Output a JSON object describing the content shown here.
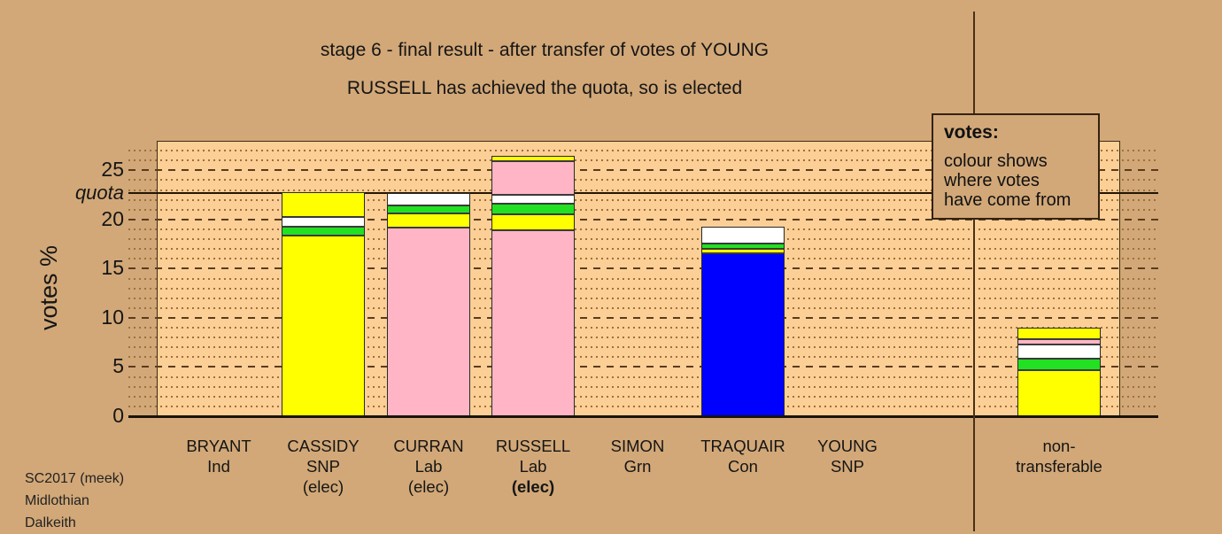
{
  "legend": {
    "title": "votes:",
    "lines": [
      "colour shows",
      "where votes",
      "have come from"
    ]
  },
  "footer": {
    "lines": [
      "SC2017 (meek)",
      "Midlothian",
      "Dalkeith"
    ]
  },
  "chart_data": {
    "type": "bar",
    "stacked": true,
    "title": "stage 6 - final result - after transfer of votes of YOUNG",
    "subtitle": "RUSSELL has achieved the quota, so is elected",
    "ylabel": "votes %",
    "ylim": [
      0,
      28
    ],
    "yticks": [
      0,
      5,
      10,
      15,
      20,
      25
    ],
    "grid": {
      "minor_step_pct": 1,
      "major_step_pct": 5
    },
    "quota": {
      "label": "quota",
      "value": 22.7
    },
    "palette": {
      "yellow": "#ffff00",
      "pink": "#ffb5c5",
      "green": "#22e022",
      "white": "#ffffff",
      "blue": "#0000ff"
    },
    "categories": [
      {
        "name": "BRYANT",
        "party": "Ind",
        "note": "",
        "note_bold": false,
        "total": 0,
        "segments": []
      },
      {
        "name": "CASSIDY",
        "party": "SNP",
        "note": "(elec)",
        "note_bold": false,
        "total": 22.8,
        "segments": [
          {
            "color": "yellow",
            "value": 18.6
          },
          {
            "color": "green",
            "value": 0.9
          },
          {
            "color": "white",
            "value": 1.0
          },
          {
            "color": "yellow",
            "value": 2.3
          }
        ]
      },
      {
        "name": "CURRAN",
        "party": "Lab",
        "note": "(elec)",
        "note_bold": false,
        "total": 22.7,
        "segments": [
          {
            "color": "pink",
            "value": 19.4
          },
          {
            "color": "yellow",
            "value": 1.4
          },
          {
            "color": "green",
            "value": 0.8
          },
          {
            "color": "white",
            "value": 1.1
          }
        ]
      },
      {
        "name": "RUSSELL",
        "party": "Lab",
        "note": "(elec)",
        "note_bold": true,
        "total": 26.5,
        "segments": [
          {
            "color": "pink",
            "value": 19.1
          },
          {
            "color": "yellow",
            "value": 1.6
          },
          {
            "color": "green",
            "value": 1.1
          },
          {
            "color": "white",
            "value": 0.9
          },
          {
            "color": "pink",
            "value": 3.4
          },
          {
            "color": "yellow",
            "value": 0.4
          }
        ]
      },
      {
        "name": "SIMON",
        "party": "Grn",
        "note": "",
        "note_bold": false,
        "total": 0,
        "segments": []
      },
      {
        "name": "TRAQUAIR",
        "party": "Con",
        "note": "",
        "note_bold": false,
        "total": 19.3,
        "segments": [
          {
            "color": "blue",
            "value": 16.8
          },
          {
            "color": "yellow",
            "value": 0.4
          },
          {
            "color": "green",
            "value": 0.6
          },
          {
            "color": "white",
            "value": 1.5
          }
        ]
      },
      {
        "name": "YOUNG",
        "party": "SNP",
        "note": "",
        "note_bold": false,
        "total": 0,
        "segments": []
      },
      {
        "name": "non-",
        "party": "transferable",
        "note": "",
        "note_bold": false,
        "total": 9.0,
        "segments": [
          {
            "color": "yellow",
            "value": 4.9
          },
          {
            "color": "green",
            "value": 1.1
          },
          {
            "color": "white",
            "value": 1.5
          },
          {
            "color": "pink",
            "value": 0.5
          },
          {
            "color": "yellow",
            "value": 1.0
          }
        ]
      }
    ]
  }
}
